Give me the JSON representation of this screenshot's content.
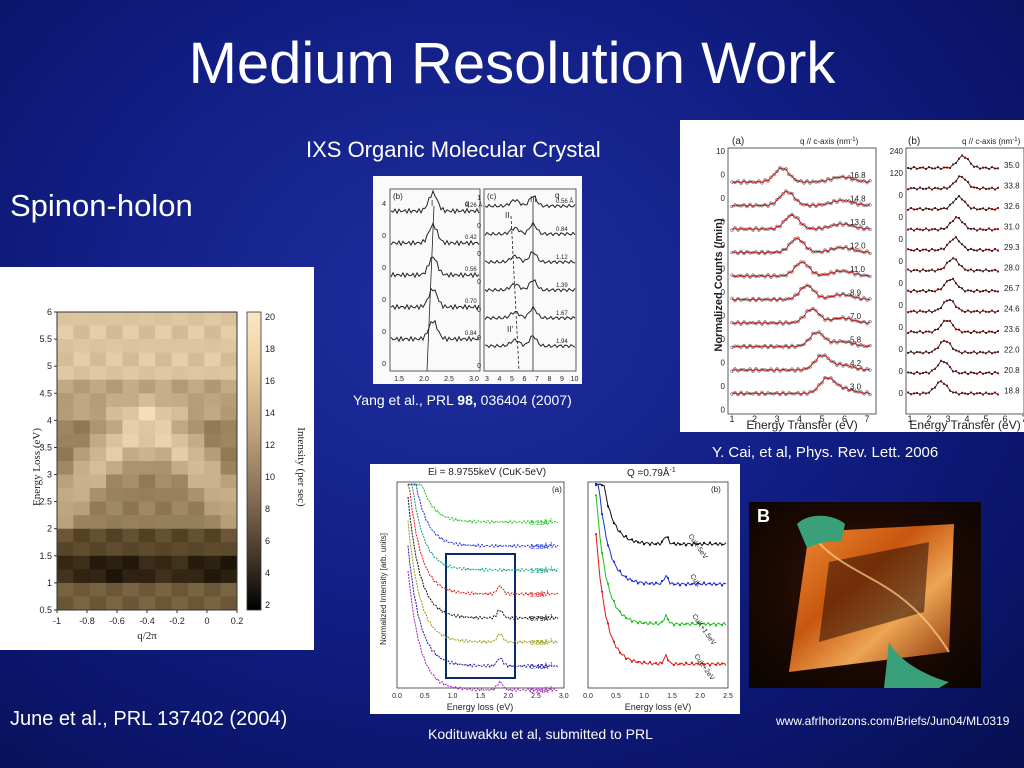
{
  "slide": {
    "title": "Medium Resolution Work",
    "spinon_label": "Spinon-holon",
    "ixs_label": "IXS Organic Molecular Crystal",
    "june_citation": "June et al., PRL 137402 (2004)",
    "yang_citation": {
      "prefix": "Yang et al., PRL ",
      "volume": "98,",
      "rest": " 036404 (2007)"
    },
    "cai_citation": "Y. Cai, et al, Phys. Rev. Lett. 2006",
    "kodi_citation": "Kodituwakku et al, submitted to PRL",
    "url": "www.afrlhorizons.com/Briefs/Jun04/ML0319"
  },
  "figure_heatmap": {
    "y_axis_label": "Energy Loss (eV)",
    "x_axis_label": "q/2π",
    "y_ticks": [
      "6",
      "5.5",
      "5",
      "4.5",
      "4",
      "3.5",
      "3",
      "2.5",
      "2",
      "1.5",
      "1",
      "0.5"
    ],
    "x_ticks": [
      "-1",
      "-0.8",
      "-0.6",
      "-0.4",
      "-0.2",
      "0",
      "0.2"
    ],
    "colorbar_label": "Intensity (per sec)",
    "colorbar_ticks": [
      "20",
      "18",
      "16",
      "14",
      "12",
      "10",
      "8",
      "6",
      "4",
      "2"
    ]
  },
  "figure_yang": {
    "panel_b_label": "(b)",
    "panel_c_label": "(c)",
    "peak_label_b": "I",
    "peak_labels_c": [
      "II",
      "III"
    ],
    "peak_label_c_low": "II'",
    "q_label": "q",
    "q_values_b": [
      "0.26 Å",
      "0.42",
      "0.56",
      "0.70",
      "0.84"
    ],
    "q_values_c": [
      "0.56 Å",
      "0.84",
      "1.12",
      "1.39",
      "1.67",
      "1.94"
    ],
    "y_ticks_b": [
      "4",
      "0",
      "0",
      "0",
      "0",
      "0"
    ],
    "y_ticks_c": [
      "1",
      "0",
      "0",
      "0",
      "0",
      "0",
      "0"
    ],
    "x_ticks_b": [
      "1.5",
      "2.0",
      "2.5",
      "3.0"
    ],
    "x_ticks_c": [
      "3",
      "4",
      "5",
      "6",
      "7",
      "8",
      "9",
      "10"
    ]
  },
  "figure_cai": {
    "panel_a_label": "(a)",
    "panel_b_label": "(b)",
    "header": "q // c-axis (nm",
    "header_sup": "-1",
    "y_axis_label": "Normalized Counts (/min)",
    "x_axis_label": "Energy Transfer (eV)",
    "x_ticks": [
      "1",
      "2",
      "3",
      "4",
      "5",
      "6",
      "7"
    ],
    "y_ticks_a": [
      "10",
      "0",
      "0",
      "0",
      "0",
      "0",
      "0",
      "0",
      "0",
      "0",
      "0",
      "0"
    ],
    "y_ticks_b": [
      "240",
      "120",
      "0",
      "0",
      "0",
      "0",
      "0",
      "0",
      "0",
      "0",
      "0",
      "0"
    ],
    "q_values_a": [
      "16.8",
      "14.8",
      "13.6",
      "12.0",
      "11.0",
      "8.9",
      "7.0",
      "5.8",
      "4.2",
      "3.0"
    ],
    "q_values_b": [
      "35.0",
      "33.8",
      "32.6",
      "31.0",
      "29.3",
      "28.0",
      "26.7",
      "24.6",
      "23.6",
      "22.0",
      "20.8",
      "18.8"
    ]
  },
  "figure_kodi": {
    "left_title": "Ei = 8.9755keV (CuK-5eV)",
    "right_title": "Q =0.79Å",
    "right_title_sup": "-1",
    "panel_a_label": "(a)",
    "panel_b_label": "(b)",
    "y_axis_label": "Normalized Intensity [arb. units]",
    "x_axis_label": "Energy loss (eV)",
    "x_ticks_a": [
      "0.0",
      "0.5",
      "1.0",
      "1.5",
      "2.0",
      "2.5",
      "3.0"
    ],
    "x_ticks_b": [
      "0.0",
      "0.5",
      "1.0",
      "1.5",
      "2.0",
      "2.5"
    ],
    "q_labels": [
      "3.11Å",
      "1.58Å",
      "1.19Å",
      "1.0Å",
      "0.79Å",
      "0.59Å",
      "0.40Å",
      "0.24Å"
    ],
    "q_label_sup": "-1",
    "energy_labels": [
      "CuK-5eV",
      "CuK",
      "CuK+1.5eV",
      "CuK+2eV"
    ],
    "colors": [
      "#1fbf1f",
      "#1a2fd0",
      "#0a9a8a",
      "#e01818",
      "#111111",
      "#9a9a10",
      "#1a1aa0",
      "#a020c0"
    ]
  },
  "photo": {
    "label": "B"
  }
}
